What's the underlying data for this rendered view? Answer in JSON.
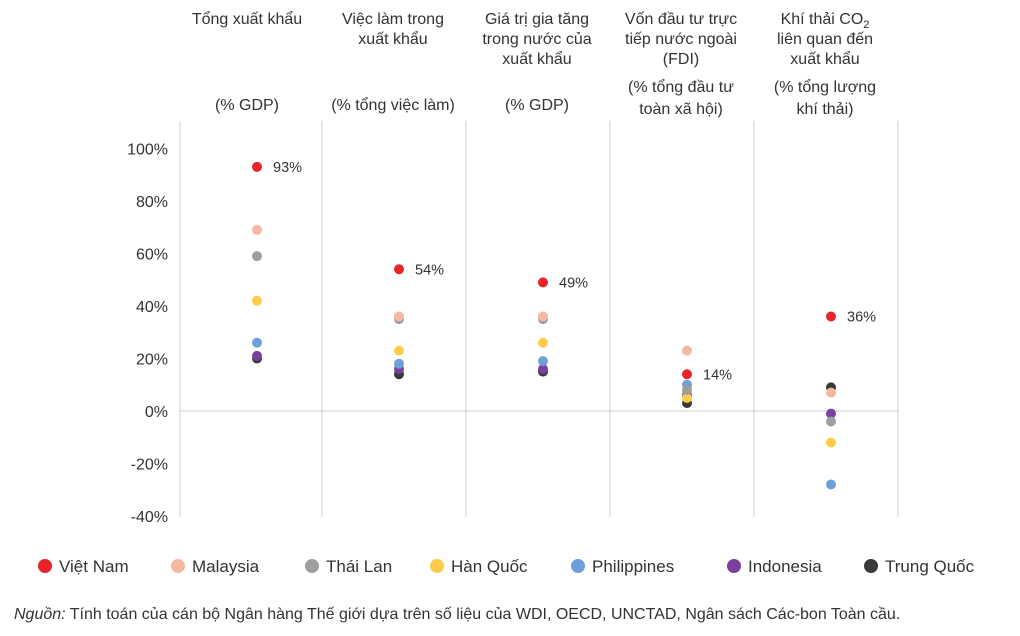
{
  "chart_data": {
    "type": "scatter",
    "categories": [
      {
        "title_lines": [
          "Tổng xuất khẩu"
        ],
        "unit_lines": [
          "(% GDP)"
        ]
      },
      {
        "title_lines": [
          "Việc làm trong",
          "xuất khẩu"
        ],
        "unit_lines": [
          "(% tổng việc làm)"
        ]
      },
      {
        "title_lines": [
          "Giá trị gia tăng",
          "trong nước của",
          "xuất khẩu"
        ],
        "unit_lines": [
          "(% GDP)"
        ]
      },
      {
        "title_lines": [
          "Vốn đầu tư trực",
          "tiếp nước ngoài",
          "(FDI)"
        ],
        "unit_lines": [
          "(% tổng đầu tư",
          "toàn xã hội)"
        ]
      },
      {
        "title_lines": [
          "Khí thải CO",
          "liên quan đến",
          "xuất khẩu"
        ],
        "title_subscript": "2",
        "unit_lines": [
          "(% tổng lượng",
          "khí thải)"
        ]
      }
    ],
    "y_ticks": [
      "100%",
      "80%",
      "60%",
      "40%",
      "20%",
      "0%",
      "-20%",
      "-40%"
    ],
    "ylim": [
      -40,
      100
    ],
    "series": [
      {
        "name": "Việt Nam",
        "color": "#e8232c",
        "values": [
          93,
          54,
          49,
          14,
          36
        ],
        "labels": [
          "93%",
          "54%",
          "49%",
          "14%",
          "36%"
        ]
      },
      {
        "name": "Malaysia",
        "color": "#f4b8a0",
        "values": [
          69,
          36,
          36,
          23,
          7
        ]
      },
      {
        "name": "Thái Lan",
        "color": "#9e9e9e",
        "values": [
          59,
          35,
          35,
          8,
          -4
        ]
      },
      {
        "name": "Hàn Quốc",
        "color": "#fccc4a",
        "values": [
          42,
          23,
          26,
          5,
          -12
        ]
      },
      {
        "name": "Philippines",
        "color": "#6f9fd8",
        "values": [
          26,
          18,
          19,
          10,
          -28
        ]
      },
      {
        "name": "Indonesia",
        "color": "#7b3fa0",
        "values": [
          21,
          16,
          16,
          6,
          -1
        ]
      },
      {
        "name": "Trung Quốc",
        "color": "#3a3a3a",
        "values": [
          20,
          14,
          15,
          3,
          9
        ]
      }
    ],
    "legend_position": "bottom",
    "grid": true
  },
  "source": {
    "prefix": "Nguồn:",
    "text": " Tính toán của cán bộ Ngân hàng Thế giới dựa trên số liệu của WDI, OECD, UNCTAD, Ngân sách Các-bon Toàn cầu."
  }
}
